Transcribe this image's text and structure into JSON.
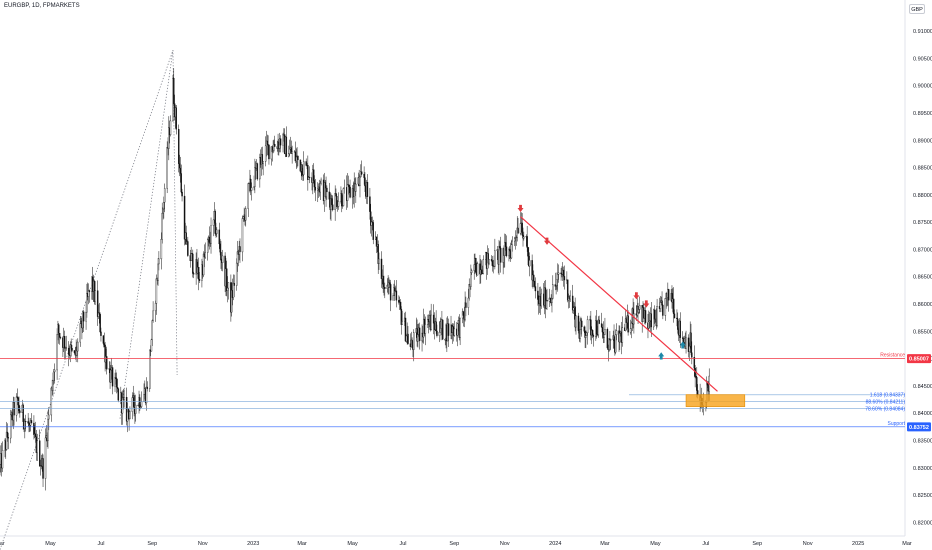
{
  "header": {
    "symbol": "EURGBP, 1D, FPMARKETS",
    "currency": "GBP"
  },
  "colors": {
    "candle": "#111111",
    "resistance": "#f23645",
    "support": "#2962ff",
    "zone": "#f7a21b",
    "trendline": "#f23645",
    "arrow_down": "#e03a3e",
    "arrow_up": "#1e88a8",
    "fib_line": "#7aa7d9"
  },
  "chart_data": {
    "type": "candlestick",
    "instrument": "EURGBP",
    "timeframe": "1D",
    "ylim": [
      0.8175,
      0.9135
    ],
    "y_ticks": [
      "0.91000",
      "0.90500",
      "0.90000",
      "0.89500",
      "0.89000",
      "0.88500",
      "0.88000",
      "0.87500",
      "0.87000",
      "0.86500",
      "0.86000",
      "0.85500",
      "0.85000",
      "0.84500",
      "0.84000",
      "0.83500",
      "0.83000",
      "0.82500",
      "0.82000"
    ],
    "x_ticks": [
      "Mar",
      "May",
      "Jul",
      "Sep",
      "Nov",
      "2023",
      "Mar",
      "May",
      "Jul",
      "Sep",
      "Nov",
      "2024",
      "Mar",
      "May",
      "Jul",
      "Sep",
      "Nov",
      "2025",
      "Mar"
    ],
    "price_path": [
      [
        "2022-03-01",
        0.83
      ],
      [
        "2022-03-20",
        0.842
      ],
      [
        "2022-04-10",
        0.836
      ],
      [
        "2022-04-22",
        0.83
      ],
      [
        "2022-05-10",
        0.855
      ],
      [
        "2022-05-30",
        0.85
      ],
      [
        "2022-06-20",
        0.864
      ],
      [
        "2022-07-10",
        0.848
      ],
      [
        "2022-07-20",
        0.844
      ],
      [
        "2022-08-01",
        0.84
      ],
      [
        "2022-08-25",
        0.844
      ],
      [
        "2022-09-10",
        0.87
      ],
      [
        "2022-09-26",
        0.9
      ],
      [
        "2022-10-12",
        0.87
      ],
      [
        "2022-10-28",
        0.865
      ],
      [
        "2022-11-15",
        0.875
      ],
      [
        "2022-12-05",
        0.86
      ],
      [
        "2022-12-25",
        0.88
      ],
      [
        "2023-01-15",
        0.888
      ],
      [
        "2023-02-03",
        0.89
      ],
      [
        "2023-02-20",
        0.887
      ],
      [
        "2023-03-10",
        0.884
      ],
      [
        "2023-04-05",
        0.879
      ],
      [
        "2023-04-25",
        0.88
      ],
      [
        "2023-05-15",
        0.883
      ],
      [
        "2023-06-05",
        0.865
      ],
      [
        "2023-06-25",
        0.86
      ],
      [
        "2023-07-10",
        0.852
      ],
      [
        "2023-07-30",
        0.857
      ],
      [
        "2023-08-20",
        0.855
      ],
      [
        "2023-09-10",
        0.856
      ],
      [
        "2023-09-25",
        0.867
      ],
      [
        "2023-10-15",
        0.868
      ],
      [
        "2023-11-08",
        0.87
      ],
      [
        "2023-11-20",
        0.876
      ],
      [
        "2023-12-10",
        0.86
      ],
      [
        "2023-12-28",
        0.862
      ],
      [
        "2024-01-10",
        0.866
      ],
      [
        "2024-01-30",
        0.855
      ],
      [
        "2024-02-20",
        0.856
      ],
      [
        "2024-03-10",
        0.852
      ],
      [
        "2024-03-28",
        0.856
      ],
      [
        "2024-04-10",
        0.86
      ],
      [
        "2024-04-22",
        0.856
      ],
      [
        "2024-05-05",
        0.858
      ],
      [
        "2024-05-20",
        0.862
      ],
      [
        "2024-06-01",
        0.854
      ],
      [
        "2024-06-12",
        0.853
      ],
      [
        "2024-06-20",
        0.844
      ],
      [
        "2024-06-26",
        0.841
      ],
      [
        "2024-07-05",
        0.846
      ]
    ],
    "levels": [
      {
        "name": "Resistance",
        "value": 0.85
      },
      {
        "name": "Support",
        "value": 0.8375
      }
    ],
    "fib_levels": [
      {
        "label": "1.618 (0.84337)",
        "value": 0.84337
      },
      {
        "label": "88.60% (0.84211)",
        "value": 0.84211
      },
      {
        "label": "78.60% (0.84084)",
        "value": 0.84084
      }
    ],
    "price_badges": [
      "0.85007",
      "0.83752"
    ],
    "zone": {
      "x_start": "2024-06-07",
      "x_end": "2024-08-17",
      "y_low": 0.8412,
      "y_high": 0.8434
    },
    "trendline": {
      "start": [
        "2023-11-20",
        0.876
      ],
      "end": [
        "2024-07-15",
        0.844
      ]
    },
    "arrows_down": [
      [
        "2023-11-20",
        0.8775
      ],
      [
        "2023-12-22",
        0.8715
      ],
      [
        "2024-04-08",
        0.8615
      ],
      [
        "2024-04-20",
        0.86
      ]
    ],
    "arrows_up": [
      [
        "2024-05-08",
        0.8505
      ],
      [
        "2024-06-03",
        0.8525
      ]
    ],
    "dotted_lines": [
      [
        [
          "2022-07-24",
          0.839
        ],
        [
          "2022-09-26",
          0.9065
        ]
      ],
      [
        [
          "2022-09-26",
          0.9065
        ],
        [
          "2022-10-01",
          0.847
        ]
      ],
      [
        [
          "2022-03-01",
          0.815
        ],
        [
          "2022-09-26",
          0.9065
        ]
      ]
    ]
  }
}
